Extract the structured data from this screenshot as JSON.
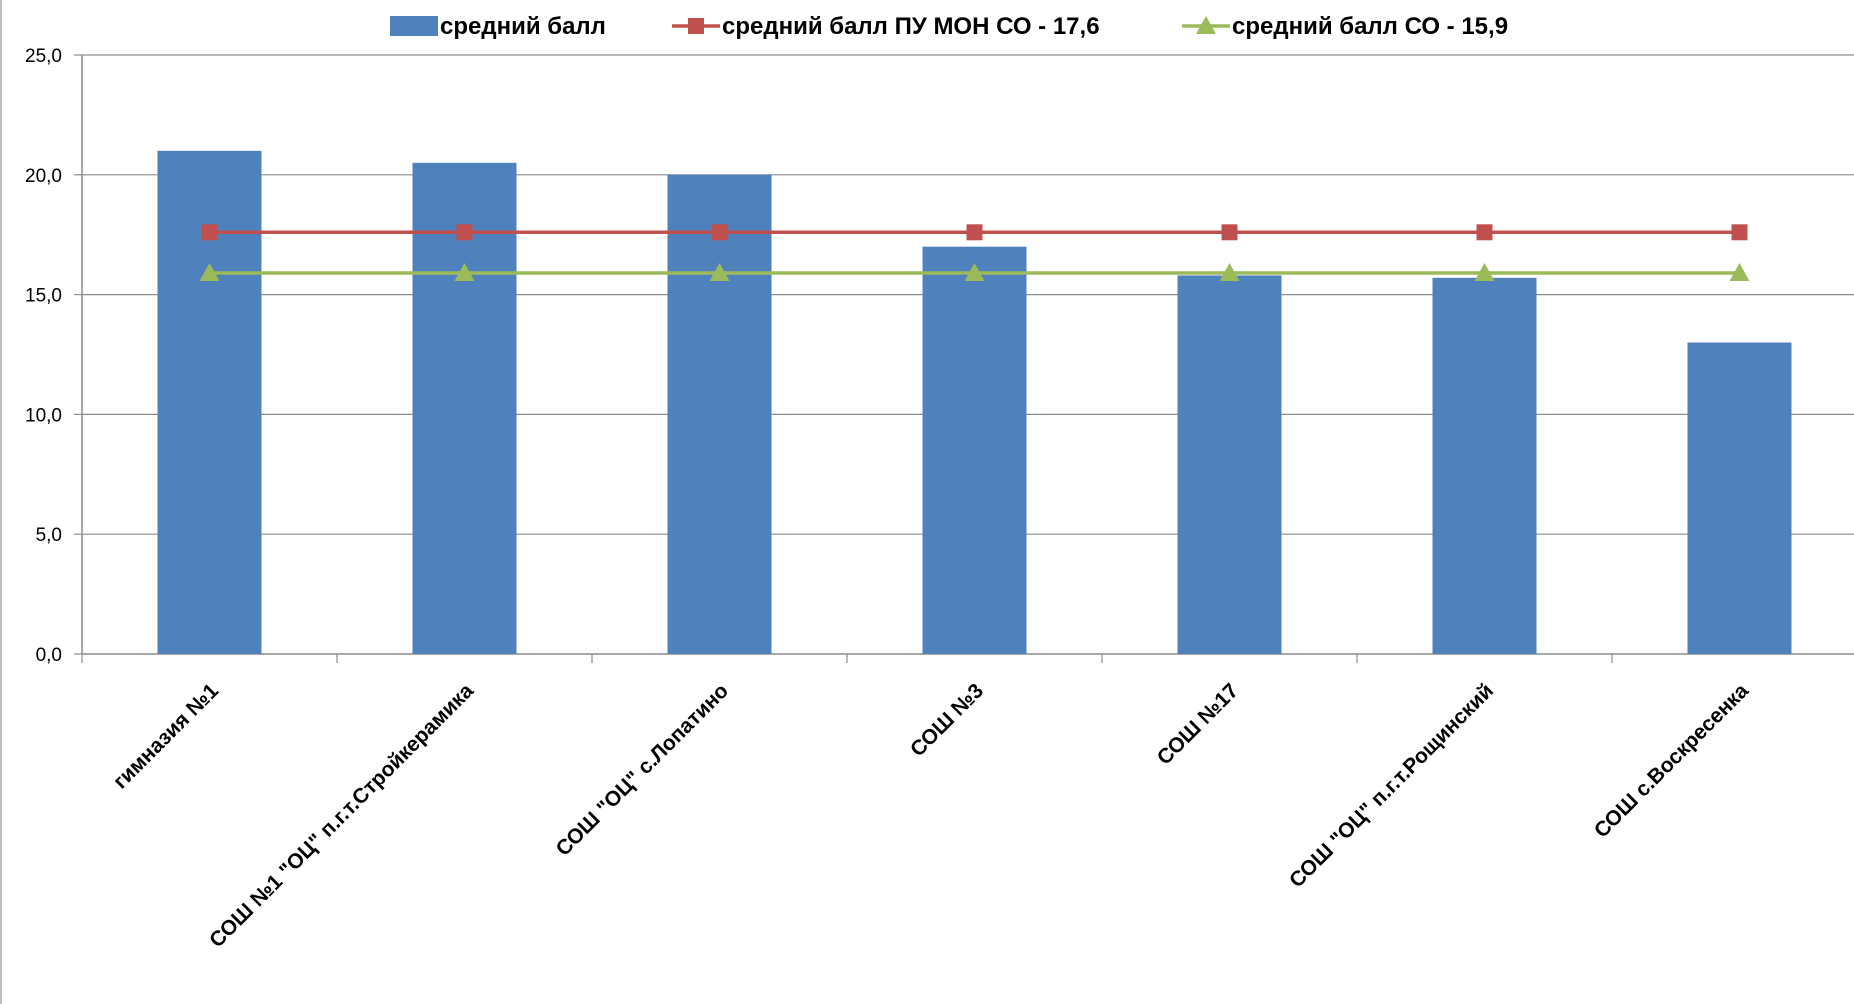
{
  "chart_data": {
    "type": "bar",
    "categories": [
      "гимназия №1",
      "СОШ №1 \"ОЦ\" п.г.т.Стройкерамика",
      "СОШ \"ОЦ\" с.Лопатино",
      "СОШ №3",
      "СОШ №17",
      "СОШ \"ОЦ\" п.г.т.Рощинский",
      "СОШ с.Воскресенка"
    ],
    "series": [
      {
        "name": "средний балл",
        "kind": "bar",
        "color": "#4F81BD",
        "values": [
          21.0,
          20.5,
          20.0,
          17.0,
          15.8,
          15.7,
          13.0
        ]
      },
      {
        "name": "средний балл ПУ МОН СО - 17,6",
        "kind": "line",
        "marker": "square",
        "color": "#C0504D",
        "values": [
          17.6,
          17.6,
          17.6,
          17.6,
          17.6,
          17.6,
          17.6
        ]
      },
      {
        "name": "средний балл СО - 15,9",
        "kind": "line",
        "marker": "triangle",
        "color": "#9BBB59",
        "values": [
          15.9,
          15.9,
          15.9,
          15.9,
          15.9,
          15.9,
          15.9
        ]
      }
    ],
    "y_ticks": [
      "0,0",
      "5,0",
      "10,0",
      "15,0",
      "20,0",
      "25,0"
    ],
    "ylim": [
      0,
      25
    ],
    "grid": true,
    "legend_position": "top"
  }
}
